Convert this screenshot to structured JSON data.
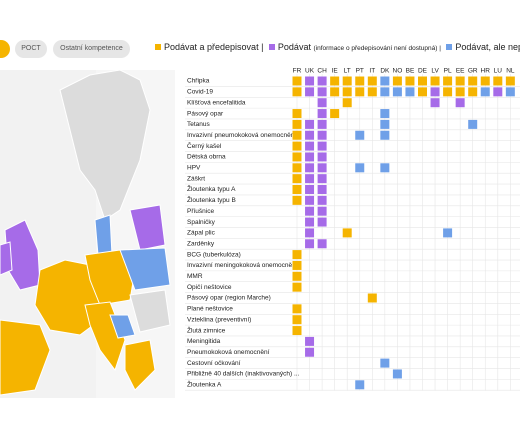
{
  "tabs": [
    "POCT",
    "Ostatní kompetence"
  ],
  "legend": [
    {
      "label": "Podávat a předepisovat |",
      "color": "#f5b400"
    },
    {
      "label": "Podávat",
      "note": "(informace o předepisování není dostupná) |",
      "color": "#a66be8"
    },
    {
      "label": "Podávat, ale nepředepisovat",
      "color": "#6fa0e8"
    }
  ],
  "columns": [
    "FR",
    "UK",
    "CH",
    "IE",
    "LT",
    "PT",
    "IT",
    "DK",
    "NO",
    "BE",
    "DE",
    "LV",
    "PL",
    "EE",
    "GR",
    "HR",
    "LU",
    "NL"
  ],
  "rows": [
    {
      "label": "Chřipka",
      "cells": [
        0,
        1,
        1,
        0,
        0,
        0,
        0,
        2,
        0,
        0,
        0,
        0,
        0,
        0,
        0,
        0,
        0,
        0
      ]
    },
    {
      "label": "Covid-19",
      "cells": [
        0,
        1,
        1,
        0,
        0,
        0,
        0,
        2,
        2,
        2,
        0,
        1,
        0,
        0,
        0,
        2,
        1,
        2
      ]
    },
    {
      "label": "Klíšťová encefalitida",
      "cells": [
        null,
        null,
        1,
        null,
        0,
        null,
        null,
        null,
        null,
        null,
        null,
        1,
        null,
        1,
        null,
        null,
        null,
        null
      ]
    },
    {
      "label": "Pásový opar",
      "cells": [
        0,
        null,
        1,
        0,
        null,
        null,
        null,
        2,
        null,
        null,
        null,
        null,
        null,
        null,
        null,
        null,
        null,
        null
      ]
    },
    {
      "label": "Tetanus",
      "cells": [
        0,
        1,
        1,
        null,
        null,
        null,
        null,
        2,
        null,
        null,
        null,
        null,
        null,
        null,
        2,
        null,
        null,
        null
      ]
    },
    {
      "label": "Invazivní pneumokoková onemocnění",
      "cells": [
        0,
        1,
        1,
        null,
        null,
        2,
        null,
        2,
        null,
        null,
        null,
        null,
        null,
        null,
        null,
        null,
        null,
        null
      ]
    },
    {
      "label": "Černý kašel",
      "cells": [
        0,
        1,
        1,
        null,
        null,
        null,
        null,
        null,
        null,
        null,
        null,
        null,
        null,
        null,
        null,
        null,
        null,
        null
      ]
    },
    {
      "label": "Dětská obrna",
      "cells": [
        0,
        1,
        1,
        null,
        null,
        null,
        null,
        null,
        null,
        null,
        null,
        null,
        null,
        null,
        null,
        null,
        null,
        null
      ]
    },
    {
      "label": "HPV",
      "cells": [
        0,
        1,
        1,
        null,
        null,
        2,
        null,
        2,
        null,
        null,
        null,
        null,
        null,
        null,
        null,
        null,
        null,
        null
      ]
    },
    {
      "label": "Záškrt",
      "cells": [
        0,
        1,
        1,
        null,
        null,
        null,
        null,
        null,
        null,
        null,
        null,
        null,
        null,
        null,
        null,
        null,
        null,
        null
      ]
    },
    {
      "label": "Žloutenka typu A",
      "cells": [
        0,
        1,
        1,
        null,
        null,
        null,
        null,
        null,
        null,
        null,
        null,
        null,
        null,
        null,
        null,
        null,
        null,
        null
      ]
    },
    {
      "label": "Žloutenka typu B",
      "cells": [
        0,
        1,
        1,
        null,
        null,
        null,
        null,
        null,
        null,
        null,
        null,
        null,
        null,
        null,
        null,
        null,
        null,
        null
      ]
    },
    {
      "label": "Příušnice",
      "cells": [
        null,
        1,
        1,
        null,
        null,
        null,
        null,
        null,
        null,
        null,
        null,
        null,
        null,
        null,
        null,
        null,
        null,
        null
      ]
    },
    {
      "label": "Spalničky",
      "cells": [
        null,
        1,
        1,
        null,
        null,
        null,
        null,
        null,
        null,
        null,
        null,
        null,
        null,
        null,
        null,
        null,
        null,
        null
      ]
    },
    {
      "label": "Zápal plic",
      "cells": [
        null,
        1,
        null,
        null,
        0,
        null,
        null,
        null,
        null,
        null,
        null,
        null,
        2,
        null,
        null,
        null,
        null,
        null
      ]
    },
    {
      "label": "Zarděnky",
      "cells": [
        null,
        1,
        1,
        null,
        null,
        null,
        null,
        null,
        null,
        null,
        null,
        null,
        null,
        null,
        null,
        null,
        null,
        null
      ]
    },
    {
      "label": "BCG (tuberkulóza)",
      "cells": [
        0,
        null,
        null,
        null,
        null,
        null,
        null,
        null,
        null,
        null,
        null,
        null,
        null,
        null,
        null,
        null,
        null,
        null
      ]
    },
    {
      "label": "Invazivní meningokoková onemocnění",
      "cells": [
        0,
        null,
        null,
        null,
        null,
        null,
        null,
        null,
        null,
        null,
        null,
        null,
        null,
        null,
        null,
        null,
        null,
        null
      ]
    },
    {
      "label": "MMR",
      "cells": [
        0,
        null,
        null,
        null,
        null,
        null,
        null,
        null,
        null,
        null,
        null,
        null,
        null,
        null,
        null,
        null,
        null,
        null
      ]
    },
    {
      "label": "Opičí neštovice",
      "cells": [
        0,
        null,
        null,
        null,
        null,
        null,
        null,
        null,
        null,
        null,
        null,
        null,
        null,
        null,
        null,
        null,
        null,
        null
      ]
    },
    {
      "label": "Pásový opar (region Marche)",
      "cells": [
        null,
        null,
        null,
        null,
        null,
        null,
        0,
        null,
        null,
        null,
        null,
        null,
        null,
        null,
        null,
        null,
        null,
        null
      ]
    },
    {
      "label": "Plané neštovice",
      "cells": [
        0,
        null,
        null,
        null,
        null,
        null,
        null,
        null,
        null,
        null,
        null,
        null,
        null,
        null,
        null,
        null,
        null,
        null
      ]
    },
    {
      "label": "Vzteklina (preventivní)",
      "cells": [
        0,
        null,
        null,
        null,
        null,
        null,
        null,
        null,
        null,
        null,
        null,
        null,
        null,
        null,
        null,
        null,
        null,
        null
      ]
    },
    {
      "label": "Žlutá zimnice",
      "cells": [
        0,
        null,
        null,
        null,
        null,
        null,
        null,
        null,
        null,
        null,
        null,
        null,
        null,
        null,
        null,
        null,
        null,
        null
      ]
    },
    {
      "label": "Meningitida",
      "cells": [
        null,
        1,
        null,
        null,
        null,
        null,
        null,
        null,
        null,
        null,
        null,
        null,
        null,
        null,
        null,
        null,
        null,
        null
      ]
    },
    {
      "label": "Pneumokoková onemocnění",
      "cells": [
        null,
        1,
        null,
        null,
        null,
        null,
        null,
        null,
        null,
        null,
        null,
        null,
        null,
        null,
        null,
        null,
        null,
        null
      ]
    },
    {
      "label": "Cestovní očkování",
      "cells": [
        null,
        null,
        null,
        null,
        null,
        null,
        null,
        2,
        null,
        null,
        null,
        null,
        null,
        null,
        null,
        null,
        null,
        null
      ]
    },
    {
      "label": "Přibližně 40 dalších (inaktivovaných) ...",
      "cells": [
        null,
        null,
        null,
        null,
        null,
        null,
        null,
        null,
        2,
        null,
        null,
        null,
        null,
        null,
        null,
        null,
        null,
        null
      ]
    },
    {
      "label": "Žloutenka A",
      "cells": [
        null,
        null,
        null,
        null,
        null,
        2,
        null,
        null,
        null,
        null,
        null,
        null,
        null,
        null,
        null,
        null,
        null,
        null
      ]
    }
  ]
}
